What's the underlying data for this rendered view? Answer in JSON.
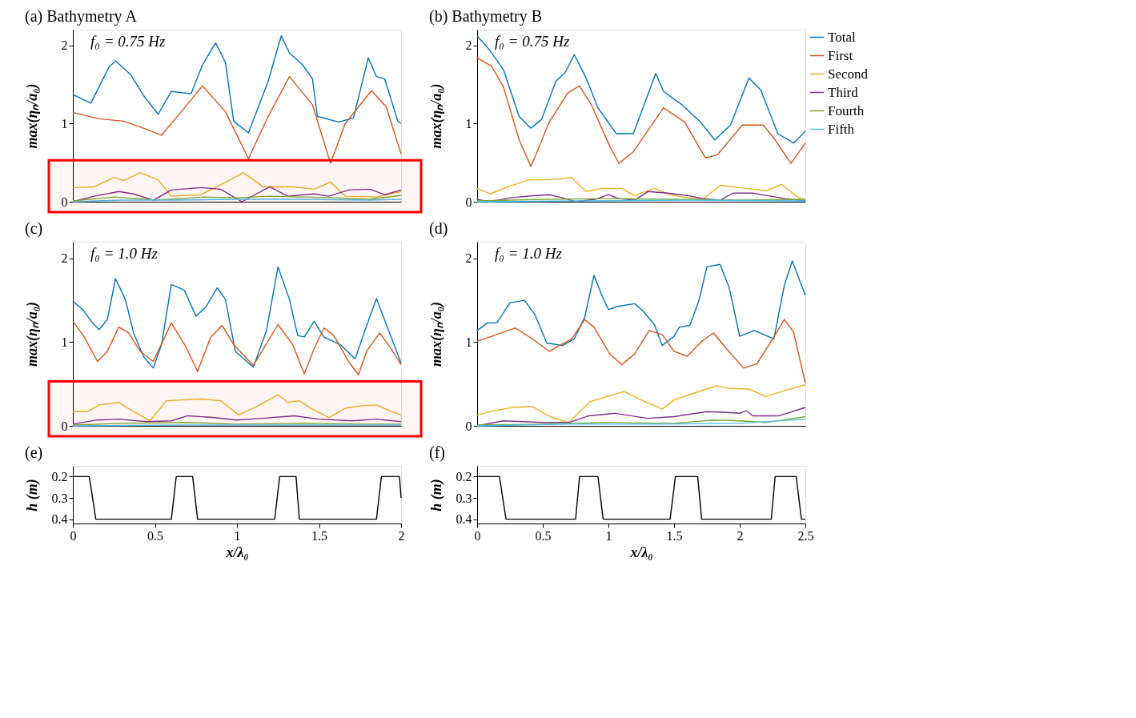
{
  "chart_data": [
    {
      "type": "line",
      "title": "(a) Bathymetry A",
      "ylabel": "max(ηₙ/a₀)",
      "annotations": [
        "f₀ = 0.75 Hz"
      ],
      "xlim": [
        0,
        2
      ],
      "ylim": [
        0,
        2.2
      ],
      "yticks": [
        0,
        1,
        2
      ],
      "tick_labels": "y",
      "grid": false,
      "legend": false,
      "bands": [
        {
          "axis": "y",
          "from": 0,
          "to": 0.53,
          "color": "#ff0000"
        }
      ],
      "series": [
        {
          "color": "#0072bd",
          "x": [
            0,
            0.11,
            0.22,
            0.26,
            0.35,
            0.44,
            0.52,
            0.6,
            0.72,
            0.79,
            0.87,
            0.93,
            0.98,
            1.07,
            1.19,
            1.27,
            1.32,
            1.4,
            1.46,
            1.49,
            1.62,
            1.71,
            1.8,
            1.85,
            1.9,
            1.98,
            2.0
          ],
          "values": [
            1.37,
            1.26,
            1.72,
            1.8,
            1.63,
            1.33,
            1.12,
            1.41,
            1.38,
            1.75,
            2.03,
            1.78,
            1.03,
            0.88,
            1.54,
            2.12,
            1.9,
            1.75,
            1.57,
            1.09,
            1.02,
            1.07,
            1.84,
            1.6,
            1.57,
            1.03,
            1.0
          ]
        },
        {
          "color": "#d95319",
          "x": [
            0,
            0.16,
            0.31,
            0.43,
            0.54,
            0.66,
            0.79,
            0.93,
            1.07,
            1.19,
            1.32,
            1.46,
            1.57,
            1.66,
            1.82,
            1.91,
            2.0
          ],
          "values": [
            1.14,
            1.06,
            1.03,
            0.94,
            0.85,
            1.15,
            1.48,
            1.15,
            0.55,
            1.09,
            1.6,
            1.24,
            0.49,
            1.0,
            1.42,
            1.21,
            0.61
          ]
        },
        {
          "color": "#edb120",
          "x": [
            0,
            0.13,
            0.25,
            0.31,
            0.41,
            0.52,
            0.6,
            0.78,
            0.93,
            1.04,
            1.16,
            1.34,
            1.47,
            1.57,
            1.66,
            1.85,
            2.0
          ],
          "values": [
            0.18,
            0.19,
            0.31,
            0.27,
            0.37,
            0.28,
            0.07,
            0.09,
            0.25,
            0.37,
            0.19,
            0.19,
            0.16,
            0.25,
            0.07,
            0.06,
            0.13
          ]
        },
        {
          "color": "#7e2f8e",
          "x": [
            0,
            0.13,
            0.28,
            0.37,
            0.49,
            0.6,
            0.78,
            0.9,
            1.03,
            1.2,
            1.31,
            1.47,
            1.56,
            1.68,
            1.81,
            1.9,
            2.0
          ],
          "values": [
            0.0,
            0.07,
            0.13,
            0.1,
            0.02,
            0.15,
            0.18,
            0.16,
            0.0,
            0.19,
            0.07,
            0.1,
            0.07,
            0.15,
            0.16,
            0.09,
            0.15
          ]
        },
        {
          "color": "#77ac30",
          "x": [
            0,
            0.15,
            0.25,
            0.4,
            0.5,
            0.65,
            0.8,
            1.0,
            1.2,
            1.4,
            1.6,
            1.8,
            2.0
          ],
          "values": [
            0.01,
            0.04,
            0.06,
            0.04,
            0.02,
            0.04,
            0.06,
            0.05,
            0.07,
            0.06,
            0.05,
            0.03,
            0.08
          ]
        },
        {
          "color": "#4dbeee",
          "x": [
            0,
            0.3,
            0.6,
            1.0,
            1.4,
            1.8,
            2.0
          ],
          "values": [
            0.0,
            0.02,
            0.02,
            0.03,
            0.03,
            0.02,
            0.03
          ]
        }
      ]
    },
    {
      "type": "line",
      "title": "(b) Bathymetry B",
      "ylabel": "max(ηₙ/a₀)",
      "annotations": [
        "f₀ = 0.75 Hz"
      ],
      "xlim": [
        0,
        2.5
      ],
      "ylim": [
        0,
        2.2
      ],
      "yticks": [
        0,
        1,
        2
      ],
      "tick_labels": "y",
      "grid": false,
      "legend": "right",
      "series": [
        {
          "name": "Total",
          "color": "#0072bd",
          "x": [
            0,
            0.09,
            0.2,
            0.32,
            0.41,
            0.49,
            0.6,
            0.67,
            0.74,
            0.83,
            0.92,
            1.06,
            1.19,
            1.36,
            1.42,
            1.56,
            1.7,
            1.81,
            1.93,
            2.07,
            2.16,
            2.29,
            2.41,
            2.5
          ],
          "values": [
            2.12,
            1.95,
            1.69,
            1.09,
            0.94,
            1.05,
            1.54,
            1.65,
            1.88,
            1.58,
            1.2,
            0.87,
            0.87,
            1.64,
            1.41,
            1.24,
            1.02,
            0.79,
            0.98,
            1.58,
            1.43,
            0.87,
            0.75,
            0.9
          ]
        },
        {
          "name": "First",
          "color": "#d95319",
          "x": [
            0,
            0.11,
            0.2,
            0.32,
            0.41,
            0.55,
            0.69,
            0.78,
            0.87,
            1.01,
            1.08,
            1.19,
            1.42,
            1.58,
            1.74,
            1.83,
            2.02,
            2.18,
            2.27,
            2.39,
            2.5
          ],
          "values": [
            1.84,
            1.73,
            1.47,
            0.79,
            0.45,
            1.02,
            1.39,
            1.48,
            1.24,
            0.71,
            0.49,
            0.64,
            1.2,
            1.02,
            0.56,
            0.6,
            0.98,
            0.98,
            0.79,
            0.49,
            0.75
          ]
        },
        {
          "name": "Second",
          "color": "#edb120",
          "x": [
            0,
            0.1,
            0.25,
            0.4,
            0.55,
            0.72,
            0.83,
            0.95,
            1.1,
            1.2,
            1.35,
            1.45,
            1.6,
            1.72,
            1.85,
            2.0,
            2.2,
            2.32,
            2.45,
            2.5
          ],
          "values": [
            0.17,
            0.1,
            0.2,
            0.28,
            0.28,
            0.31,
            0.13,
            0.17,
            0.17,
            0.08,
            0.17,
            0.1,
            0.05,
            0.03,
            0.21,
            0.18,
            0.14,
            0.22,
            0.05,
            0.03
          ]
        },
        {
          "name": "Third",
          "color": "#7e2f8e",
          "x": [
            0,
            0.1,
            0.25,
            0.45,
            0.55,
            0.65,
            0.75,
            0.9,
            1.0,
            1.08,
            1.2,
            1.3,
            1.45,
            1.6,
            1.72,
            1.85,
            1.95,
            2.1,
            2.2,
            2.35,
            2.5
          ],
          "values": [
            0.03,
            0.0,
            0.05,
            0.08,
            0.09,
            0.05,
            0.0,
            0.03,
            0.09,
            0.04,
            0.02,
            0.13,
            0.11,
            0.08,
            0.04,
            0.02,
            0.11,
            0.11,
            0.08,
            0.04,
            0.01
          ]
        },
        {
          "name": "Fourth",
          "color": "#77ac30",
          "x": [
            0,
            0.5,
            1.0,
            1.5,
            2.0,
            2.5
          ],
          "values": [
            0.01,
            0.03,
            0.04,
            0.03,
            0.02,
            0.03
          ]
        },
        {
          "name": "Fifth",
          "color": "#4dbeee",
          "x": [
            0,
            0.8,
            1.6,
            2.5
          ],
          "values": [
            0.0,
            0.01,
            0.02,
            0.01
          ]
        }
      ]
    },
    {
      "type": "line",
      "title": "(c)",
      "ylabel": "max(ηₙ/a₀)",
      "annotations": [
        "f₀ = 1.0 Hz"
      ],
      "xlim": [
        0,
        2
      ],
      "ylim": [
        0,
        2.2
      ],
      "yticks": [
        0,
        1,
        2
      ],
      "tick_labels": "y",
      "grid": false,
      "legend": false,
      "bands": [
        {
          "axis": "y",
          "from": 0,
          "to": 0.53,
          "color": "#ff0000"
        }
      ],
      "series": [
        {
          "color": "#0072bd",
          "x": [
            0,
            0.06,
            0.12,
            0.16,
            0.21,
            0.26,
            0.32,
            0.37,
            0.43,
            0.49,
            0.54,
            0.6,
            0.68,
            0.75,
            0.81,
            0.88,
            0.93,
            0.99,
            1.1,
            1.18,
            1.25,
            1.32,
            1.37,
            1.41,
            1.47,
            1.53,
            1.63,
            1.72,
            1.78,
            1.85,
            1.93,
            2.0
          ],
          "values": [
            1.49,
            1.39,
            1.23,
            1.15,
            1.27,
            1.76,
            1.51,
            1.11,
            0.83,
            0.69,
            0.97,
            1.69,
            1.62,
            1.31,
            1.42,
            1.65,
            1.51,
            0.89,
            0.7,
            1.14,
            1.9,
            1.51,
            1.08,
            1.06,
            1.25,
            1.06,
            0.97,
            0.8,
            1.14,
            1.52,
            1.11,
            0.75
          ]
        },
        {
          "color": "#d95319",
          "x": [
            0,
            0.07,
            0.15,
            0.21,
            0.28,
            0.34,
            0.41,
            0.49,
            0.6,
            0.69,
            0.76,
            0.84,
            0.91,
            0.98,
            1.1,
            1.25,
            1.34,
            1.41,
            1.47,
            1.53,
            1.59,
            1.68,
            1.74,
            1.79,
            1.87,
            1.94,
            2.0
          ],
          "values": [
            1.25,
            1.06,
            0.77,
            0.89,
            1.18,
            1.11,
            0.89,
            0.77,
            1.23,
            0.94,
            0.65,
            1.06,
            1.2,
            0.97,
            0.72,
            1.21,
            0.97,
            0.62,
            0.92,
            1.17,
            1.08,
            0.77,
            0.61,
            0.89,
            1.11,
            0.92,
            0.73
          ]
        },
        {
          "color": "#edb120",
          "x": [
            0,
            0.09,
            0.16,
            0.28,
            0.37,
            0.47,
            0.57,
            0.78,
            0.9,
            1.01,
            1.12,
            1.25,
            1.31,
            1.38,
            1.46,
            1.56,
            1.66,
            1.76,
            1.85,
            1.93,
            2.0
          ],
          "values": [
            0.17,
            0.17,
            0.25,
            0.28,
            0.17,
            0.06,
            0.3,
            0.32,
            0.3,
            0.13,
            0.23,
            0.37,
            0.28,
            0.3,
            0.2,
            0.1,
            0.21,
            0.24,
            0.25,
            0.18,
            0.13
          ]
        },
        {
          "color": "#7e2f8e",
          "x": [
            0,
            0.15,
            0.28,
            0.45,
            0.6,
            0.7,
            0.85,
            1.0,
            1.15,
            1.35,
            1.5,
            1.7,
            1.85,
            2.0
          ],
          "values": [
            0.02,
            0.07,
            0.08,
            0.05,
            0.06,
            0.12,
            0.1,
            0.07,
            0.09,
            0.12,
            0.08,
            0.06,
            0.08,
            0.05
          ]
        },
        {
          "color": "#77ac30",
          "x": [
            0,
            0.3,
            0.7,
            1.0,
            1.4,
            1.8,
            2.0
          ],
          "values": [
            0.01,
            0.03,
            0.04,
            0.02,
            0.03,
            0.02,
            0.02
          ]
        },
        {
          "color": "#4dbeee",
          "x": [
            0,
            0.7,
            1.4,
            2.0
          ],
          "values": [
            0.0,
            0.01,
            0.01,
            0.01
          ]
        }
      ]
    },
    {
      "type": "line",
      "title": "(d)",
      "ylabel": "max(ηₙ/a₀)",
      "annotations": [
        "f₀ = 1.0 Hz"
      ],
      "xlim": [
        0,
        2.5
      ],
      "ylim": [
        0,
        2.2
      ],
      "yticks": [
        0,
        1,
        2
      ],
      "tick_labels": "y",
      "grid": false,
      "legend": false,
      "series": [
        {
          "color": "#0072bd",
          "x": [
            0,
            0.08,
            0.15,
            0.25,
            0.36,
            0.44,
            0.53,
            0.65,
            0.74,
            0.82,
            0.89,
            0.95,
            1.0,
            1.08,
            1.2,
            1.27,
            1.35,
            1.41,
            1.5,
            1.54,
            1.62,
            1.69,
            1.75,
            1.85,
            1.92,
            2.0,
            2.11,
            2.26,
            2.34,
            2.4,
            2.5
          ],
          "values": [
            1.14,
            1.23,
            1.23,
            1.47,
            1.5,
            1.33,
            0.99,
            0.96,
            1.04,
            1.3,
            1.8,
            1.56,
            1.39,
            1.43,
            1.46,
            1.36,
            1.21,
            0.96,
            1.07,
            1.18,
            1.2,
            1.5,
            1.9,
            1.93,
            1.65,
            1.07,
            1.14,
            1.04,
            1.68,
            1.97,
            1.56
          ]
        },
        {
          "color": "#d95319",
          "x": [
            0,
            0.13,
            0.29,
            0.42,
            0.55,
            0.72,
            0.82,
            0.89,
            1.01,
            1.1,
            1.2,
            1.31,
            1.41,
            1.5,
            1.6,
            1.71,
            1.8,
            1.9,
            2.03,
            2.13,
            2.24,
            2.34,
            2.41,
            2.5
          ],
          "values": [
            1.01,
            1.08,
            1.17,
            1.04,
            0.89,
            1.04,
            1.27,
            1.18,
            0.86,
            0.73,
            0.86,
            1.14,
            1.09,
            0.89,
            0.83,
            1.01,
            1.11,
            0.92,
            0.69,
            0.74,
            1.01,
            1.27,
            1.12,
            0.51
          ]
        },
        {
          "color": "#edb120",
          "x": [
            0,
            0.13,
            0.27,
            0.42,
            0.57,
            0.7,
            0.86,
            0.97,
            1.12,
            1.25,
            1.41,
            1.5,
            1.65,
            1.82,
            1.92,
            2.07,
            2.2,
            2.34,
            2.5
          ],
          "values": [
            0.13,
            0.18,
            0.22,
            0.23,
            0.1,
            0.04,
            0.29,
            0.34,
            0.41,
            0.31,
            0.2,
            0.31,
            0.39,
            0.48,
            0.45,
            0.44,
            0.35,
            0.42,
            0.49
          ]
        },
        {
          "color": "#7e2f8e",
          "x": [
            0,
            0.2,
            0.5,
            0.7,
            0.85,
            1.05,
            1.3,
            1.5,
            1.75,
            1.9,
            2.0,
            2.05,
            2.1,
            2.3,
            2.5
          ],
          "values": [
            0.0,
            0.06,
            0.04,
            0.04,
            0.12,
            0.15,
            0.09,
            0.11,
            0.17,
            0.16,
            0.15,
            0.18,
            0.12,
            0.12,
            0.22
          ]
        },
        {
          "color": "#77ac30",
          "x": [
            0,
            0.5,
            1.0,
            1.5,
            1.8,
            2.0,
            2.2,
            2.5
          ],
          "values": [
            0.01,
            0.02,
            0.04,
            0.03,
            0.07,
            0.06,
            0.04,
            0.11
          ]
        },
        {
          "color": "#4dbeee",
          "x": [
            0,
            0.7,
            1.4,
            2.0,
            2.5
          ],
          "values": [
            0.0,
            0.02,
            0.02,
            0.03,
            0.08
          ]
        }
      ]
    },
    {
      "type": "line",
      "title": "(e)",
      "xlabel": "x/λ₀",
      "ylabel": "h (m)",
      "xlim": [
        0,
        2
      ],
      "xticks": [
        0,
        0.5,
        1,
        1.5,
        2
      ],
      "ylim": [
        0.42,
        0.15
      ],
      "yticks": [
        0.2,
        0.3,
        0.4
      ],
      "grid": false,
      "legend": false,
      "series": [
        {
          "color": "#000000",
          "x": [
            0,
            0.1,
            0.14,
            0.6,
            0.63,
            0.73,
            0.76,
            1.23,
            1.26,
            1.36,
            1.38,
            1.85,
            1.88,
            1.99,
            2.0
          ],
          "values": [
            0.2,
            0.2,
            0.4,
            0.4,
            0.2,
            0.2,
            0.4,
            0.4,
            0.2,
            0.2,
            0.4,
            0.4,
            0.2,
            0.2,
            0.3
          ]
        }
      ]
    },
    {
      "type": "line",
      "title": "(f)",
      "xlabel": "x/λ₀",
      "ylabel": "h (m)",
      "xlim": [
        0,
        2.5
      ],
      "xticks": [
        0,
        0.5,
        1,
        1.5,
        2,
        2.5
      ],
      "ylim": [
        0.42,
        0.15
      ],
      "yticks": [
        0.2,
        0.3,
        0.4
      ],
      "grid": false,
      "legend": false,
      "series": [
        {
          "color": "#000000",
          "x": [
            0,
            0.17,
            0.22,
            0.75,
            0.78,
            0.92,
            0.96,
            1.47,
            1.51,
            1.68,
            1.71,
            2.24,
            2.27,
            2.43,
            2.47,
            2.5
          ],
          "values": [
            0.2,
            0.2,
            0.4,
            0.4,
            0.2,
            0.2,
            0.4,
            0.4,
            0.2,
            0.2,
            0.4,
            0.4,
            0.2,
            0.2,
            0.4,
            0.4
          ]
        }
      ]
    }
  ]
}
